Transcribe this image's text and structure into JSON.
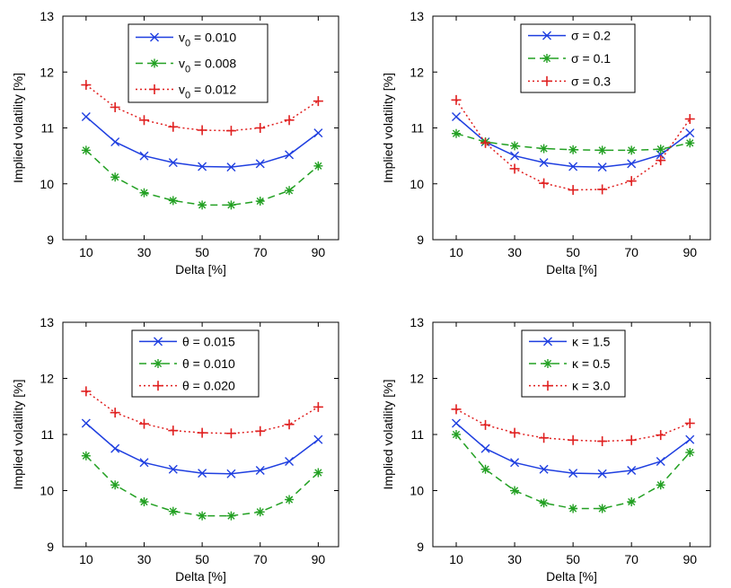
{
  "chart_data": [
    {
      "type": "line",
      "xlabel": "Delta [%]",
      "ylabel": "Implied volatility [%]",
      "xlim": [
        2,
        97
      ],
      "ylim": [
        9,
        13
      ],
      "xticks": [
        10,
        30,
        50,
        70,
        90
      ],
      "yticks": [
        9,
        10,
        11,
        12,
        13
      ],
      "legend_position": "top-center",
      "x": [
        10,
        20,
        30,
        40,
        50,
        60,
        70,
        80,
        90
      ],
      "series": [
        {
          "name": "v",
          "sub": "0",
          "value_text": " = 0.010",
          "color": "#1f3fe0",
          "dash": "",
          "marker": "x",
          "values": [
            11.2,
            10.75,
            10.5,
            10.38,
            10.31,
            10.3,
            10.36,
            10.52,
            10.91
          ]
        },
        {
          "name": "v",
          "sub": "0",
          "value_text": " = 0.008",
          "color": "#22a022",
          "dash": "8,5",
          "marker": "star",
          "values": [
            10.6,
            10.12,
            9.84,
            9.7,
            9.62,
            9.62,
            9.69,
            9.88,
            10.32
          ]
        },
        {
          "name": "v",
          "sub": "0",
          "value_text": " = 0.012",
          "color": "#e02020",
          "dash": "2,3",
          "marker": "plus",
          "values": [
            11.77,
            11.37,
            11.14,
            11.02,
            10.96,
            10.95,
            11.0,
            11.14,
            11.48
          ]
        }
      ]
    },
    {
      "type": "line",
      "xlabel": "Delta [%]",
      "ylabel": "Implied volatility [%]",
      "xlim": [
        2,
        97
      ],
      "ylim": [
        9,
        13
      ],
      "xticks": [
        10,
        30,
        50,
        70,
        90
      ],
      "yticks": [
        9,
        10,
        11,
        12,
        13
      ],
      "legend_position": "top-center",
      "x": [
        10,
        20,
        30,
        40,
        50,
        60,
        70,
        80,
        90
      ],
      "series": [
        {
          "name": "σ = 0.2",
          "sub": "",
          "value_text": "",
          "color": "#1f3fe0",
          "dash": "",
          "marker": "x",
          "values": [
            11.2,
            10.75,
            10.5,
            10.38,
            10.31,
            10.3,
            10.36,
            10.52,
            10.91
          ]
        },
        {
          "name": "σ = 0.1",
          "sub": "",
          "value_text": "",
          "color": "#22a022",
          "dash": "8,5",
          "marker": "star",
          "values": [
            10.9,
            10.75,
            10.68,
            10.63,
            10.61,
            10.6,
            10.6,
            10.62,
            10.73
          ]
        },
        {
          "name": "σ = 0.3",
          "sub": "",
          "value_text": "",
          "color": "#e02020",
          "dash": "2,3",
          "marker": "plus",
          "values": [
            11.5,
            10.73,
            10.27,
            10.01,
            9.89,
            9.9,
            10.05,
            10.42,
            11.16
          ]
        }
      ]
    },
    {
      "type": "line",
      "xlabel": "Delta [%]",
      "ylabel": "Implied volatility [%]",
      "xlim": [
        2,
        97
      ],
      "ylim": [
        9,
        13
      ],
      "xticks": [
        10,
        30,
        50,
        70,
        90
      ],
      "yticks": [
        9,
        10,
        11,
        12,
        13
      ],
      "legend_position": "top-center",
      "x": [
        10,
        20,
        30,
        40,
        50,
        60,
        70,
        80,
        90
      ],
      "series": [
        {
          "name": "θ = 0.015",
          "sub": "",
          "value_text": "",
          "color": "#1f3fe0",
          "dash": "",
          "marker": "x",
          "values": [
            11.2,
            10.75,
            10.5,
            10.38,
            10.31,
            10.3,
            10.36,
            10.52,
            10.91
          ]
        },
        {
          "name": "θ = 0.010",
          "sub": "",
          "value_text": "",
          "color": "#22a022",
          "dash": "8,5",
          "marker": "star",
          "values": [
            10.62,
            10.1,
            9.8,
            9.63,
            9.55,
            9.55,
            9.62,
            9.84,
            10.32
          ]
        },
        {
          "name": "θ = 0.020",
          "sub": "",
          "value_text": "",
          "color": "#e02020",
          "dash": "2,3",
          "marker": "plus",
          "values": [
            11.77,
            11.39,
            11.19,
            11.07,
            11.03,
            11.02,
            11.06,
            11.18,
            11.49
          ]
        }
      ]
    },
    {
      "type": "line",
      "xlabel": "Delta [%]",
      "ylabel": "Implied volatility [%]",
      "xlim": [
        2,
        97
      ],
      "ylim": [
        9,
        13
      ],
      "xticks": [
        10,
        30,
        50,
        70,
        90
      ],
      "yticks": [
        9,
        10,
        11,
        12,
        13
      ],
      "legend_position": "top-center",
      "x": [
        10,
        20,
        30,
        40,
        50,
        60,
        70,
        80,
        90
      ],
      "series": [
        {
          "name": "κ = 1.5",
          "sub": "",
          "value_text": "",
          "color": "#1f3fe0",
          "dash": "",
          "marker": "x",
          "values": [
            11.2,
            10.75,
            10.5,
            10.38,
            10.31,
            10.3,
            10.36,
            10.52,
            10.91
          ]
        },
        {
          "name": "κ = 0.5",
          "sub": "",
          "value_text": "",
          "color": "#22a022",
          "dash": "8,5",
          "marker": "star",
          "values": [
            11.0,
            10.38,
            10.0,
            9.78,
            9.68,
            9.68,
            9.8,
            10.1,
            10.68
          ]
        },
        {
          "name": "κ = 3.0",
          "sub": "",
          "value_text": "",
          "color": "#e02020",
          "dash": "2,3",
          "marker": "plus",
          "values": [
            11.45,
            11.17,
            11.03,
            10.94,
            10.9,
            10.88,
            10.9,
            10.99,
            11.2
          ]
        }
      ]
    }
  ]
}
